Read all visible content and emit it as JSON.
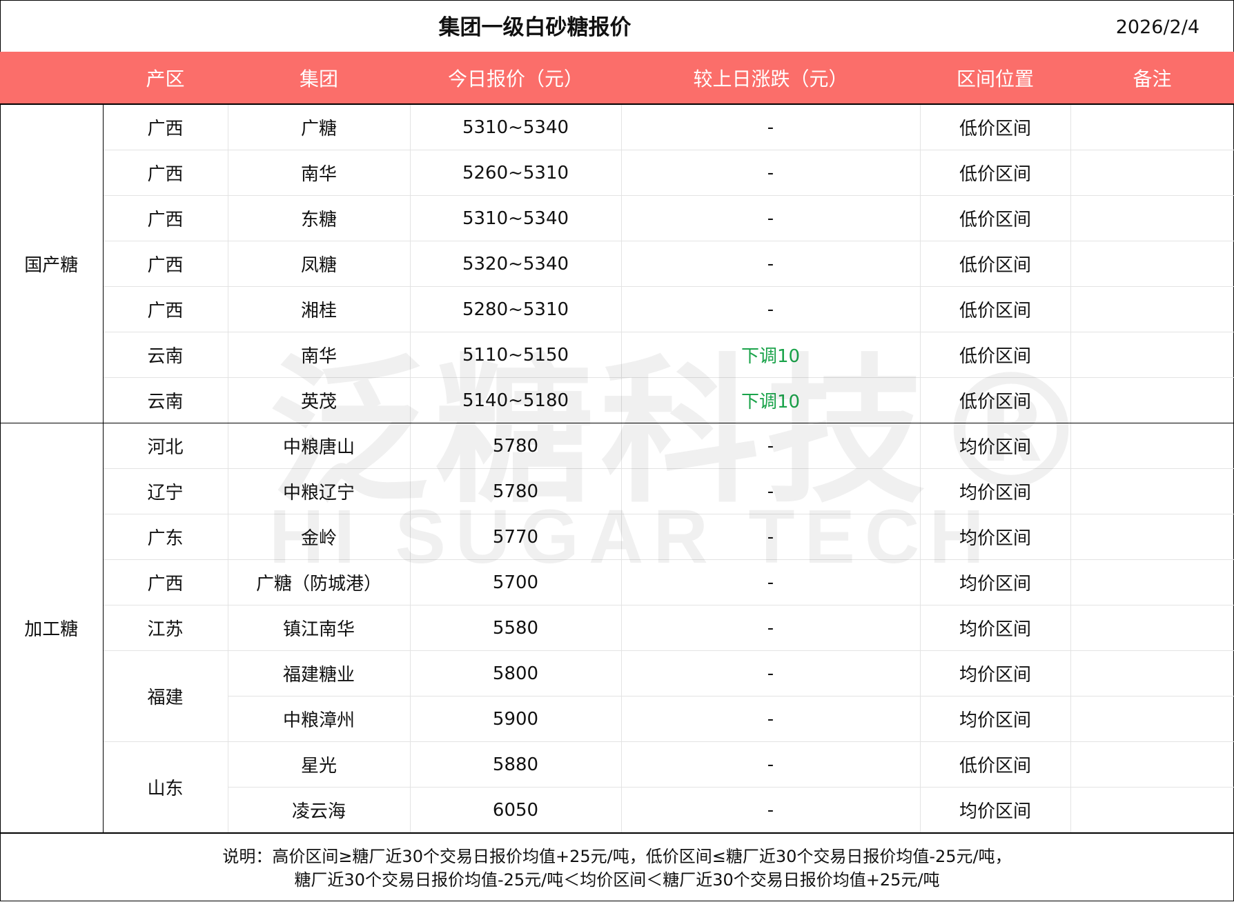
{
  "title": "集团一级白砂糖报价",
  "date": "2026/2/4",
  "headers": [
    "",
    "产区",
    "集团",
    "今日报价（元）",
    "较上日涨跌（元）",
    "区间位置",
    "备注"
  ],
  "categories": [
    "国产糖",
    "加工糖"
  ],
  "rows": [
    {
      "region": "广西",
      "group": "广糖",
      "price": "5310~5340",
      "change": "-",
      "position": "低价区间",
      "note": ""
    },
    {
      "region": "广西",
      "group": "南华",
      "price": "5260~5310",
      "change": "-",
      "position": "低价区间",
      "note": ""
    },
    {
      "region": "广西",
      "group": "东糖",
      "price": "5310~5340",
      "change": "-",
      "position": "低价区间",
      "note": ""
    },
    {
      "region": "广西",
      "group": "凤糖",
      "price": "5320~5340",
      "change": "-",
      "position": "低价区间",
      "note": ""
    },
    {
      "region": "广西",
      "group": "湘桂",
      "price": "5280~5310",
      "change": "-",
      "position": "低价区间",
      "note": ""
    },
    {
      "region": "云南",
      "group": "南华",
      "price": "5110~5150",
      "change": "下调10",
      "position": "低价区间",
      "note": ""
    },
    {
      "region": "云南",
      "group": "英茂",
      "price": "5140~5180",
      "change": "下调10",
      "position": "低价区间",
      "note": ""
    },
    {
      "region": "河北",
      "group": "中粮唐山",
      "price": "5780",
      "change": "-",
      "position": "均价区间",
      "note": ""
    },
    {
      "region": "辽宁",
      "group": "中粮辽宁",
      "price": "5780",
      "change": "-",
      "position": "均价区间",
      "note": ""
    },
    {
      "region": "广东",
      "group": "金岭",
      "price": "5770",
      "change": "-",
      "position": "均价区间",
      "note": ""
    },
    {
      "region": "广西",
      "group": "广糖（防城港）",
      "price": "5700",
      "change": "-",
      "position": "均价区间",
      "note": ""
    },
    {
      "region": "江苏",
      "group": "镇江南华",
      "price": "5580",
      "change": "-",
      "position": "均价区间",
      "note": ""
    },
    {
      "region": "福建",
      "group": "福建糖业",
      "price": "5800",
      "change": "-",
      "position": "均价区间",
      "note": ""
    },
    {
      "region": "",
      "group": "中粮漳州",
      "price": "5900",
      "change": "-",
      "position": "均价区间",
      "note": ""
    },
    {
      "region": "山东",
      "group": "星光",
      "price": "5880",
      "change": "-",
      "position": "低价区间",
      "note": ""
    },
    {
      "region": "",
      "group": "凌云海",
      "price": "6050",
      "change": "-",
      "position": "均价区间",
      "note": ""
    }
  ],
  "footnote": {
    "line1": "说明：高价区间≥糖厂近30个交易日报价均值+25元/吨，低价区间≤糖厂近30个交易日报价均值-25元/吨，",
    "line2": "糖厂近30个交易日报价均值-25元/吨＜均价区间＜糖厂近30个交易日报价均值+25元/吨"
  },
  "watermark": {
    "cn": "泛糖科技®",
    "en": "HI SUGAR TECH"
  },
  "colors": {
    "header_bg": "#fb6e6a",
    "down": "#1aa34a"
  }
}
